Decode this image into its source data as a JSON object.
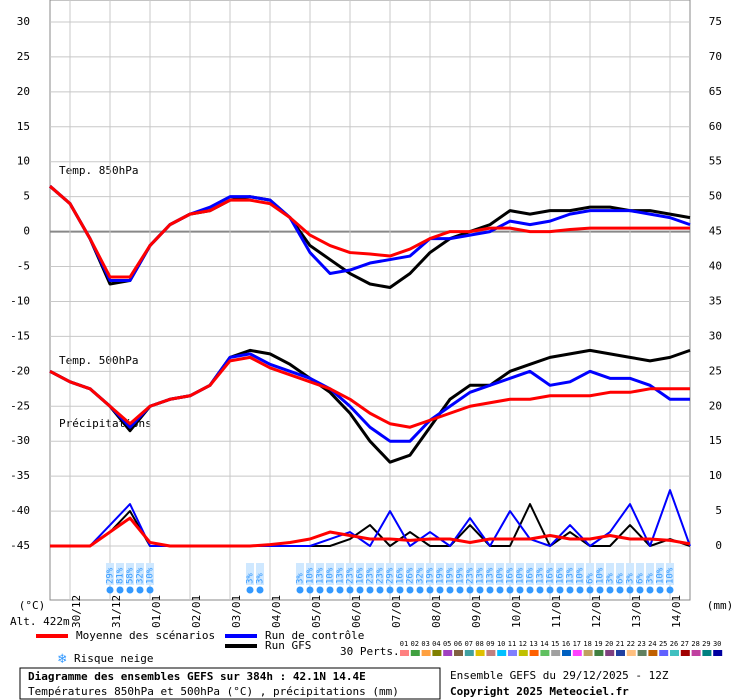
{
  "chart_data": {
    "type": "line",
    "x": [
      0,
      12,
      24,
      36,
      48,
      60,
      72,
      84,
      96,
      108,
      120,
      132,
      144,
      156,
      168,
      180,
      192,
      204,
      216,
      228,
      240,
      252,
      264,
      276,
      288,
      300,
      312,
      324,
      336,
      348,
      360,
      372,
      384
    ],
    "xlim": [
      0,
      384
    ],
    "xticks": [
      {
        "value": 12,
        "label": "30/12"
      },
      {
        "value": 36,
        "label": "31/12"
      },
      {
        "value": 60,
        "label": "01/01"
      },
      {
        "value": 84,
        "label": "02/01"
      },
      {
        "value": 108,
        "label": "03/01"
      },
      {
        "value": 132,
        "label": "04/01"
      },
      {
        "value": 156,
        "label": "05/01"
      },
      {
        "value": 180,
        "label": "06/01"
      },
      {
        "value": 204,
        "label": "07/01"
      },
      {
        "value": 228,
        "label": "08/01"
      },
      {
        "value": 252,
        "label": "09/01"
      },
      {
        "value": 276,
        "label": "10/01"
      },
      {
        "value": 300,
        "label": "11/01"
      },
      {
        "value": 324,
        "label": "12/01"
      },
      {
        "value": 348,
        "label": "13/01"
      },
      {
        "value": 372,
        "label": "14/01"
      }
    ],
    "ylim": [
      -45,
      30
    ],
    "yticks": [
      -45,
      -40,
      -35,
      -30,
      -25,
      -20,
      -15,
      -10,
      -5,
      0,
      5,
      10,
      15,
      20,
      25,
      30
    ],
    "y2lim": [
      0,
      75
    ],
    "y2ticks": [
      0,
      5,
      10,
      15,
      20,
      25,
      30,
      35,
      40,
      45,
      50,
      55,
      60,
      65,
      70,
      75
    ],
    "grid": true,
    "ylabel": "(°C)",
    "y2label": "(mm)",
    "altitude": "Alt. 422m",
    "field_labels": {
      "t850": "Temp. 850hPa",
      "t500": "Temp. 500hPa",
      "precip": "Précipitations"
    },
    "series": [
      {
        "name": "Moyenne des scénarios",
        "color": "#ff0000",
        "t850": [
          6.5,
          4,
          -1,
          -6.5,
          -6.5,
          -2,
          1,
          2.5,
          3,
          4.5,
          4.5,
          4,
          2,
          -0.5,
          -2,
          -3,
          -3.2,
          -3.5,
          -2.5,
          -1,
          0,
          0,
          0.5,
          0.5,
          0,
          0,
          0.3,
          0.5,
          0.5,
          0.5,
          0.5,
          0.5,
          0.5
        ],
        "t500": [
          -20,
          -21.5,
          -22.5,
          -25,
          -27.5,
          -25,
          -24,
          -23.5,
          -22,
          -18.5,
          -18,
          -19.5,
          -20.5,
          -21.5,
          -22.5,
          -24,
          -26,
          -27.5,
          -28,
          -27,
          -26,
          -25,
          -24.5,
          -24,
          -24,
          -23.5,
          -23.5,
          -23.5,
          -23,
          -23,
          -22.5,
          -22.5,
          -22.5
        ],
        "precip": [
          0,
          0,
          0,
          2,
          4,
          0.5,
          0,
          0,
          0,
          0,
          0,
          0.2,
          0.5,
          1,
          2,
          1.5,
          1,
          1,
          0.8,
          1,
          1,
          0.5,
          1,
          1,
          1,
          1.5,
          1,
          1,
          1.5,
          1,
          1,
          0.8,
          0.3
        ]
      },
      {
        "name": "Run de contrôle",
        "color": "#0000ff",
        "t850": [
          6.5,
          4,
          -1,
          -7,
          -7,
          -2,
          1,
          2.5,
          3.5,
          5,
          5,
          4.5,
          2,
          -3,
          -6,
          -5.5,
          -4.5,
          -4,
          -3.5,
          -1,
          -1,
          -0.5,
          0,
          1.5,
          1,
          1.5,
          2.5,
          3,
          3,
          3,
          2.5,
          2,
          1
        ],
        "t500": [
          -20,
          -21.5,
          -22.5,
          -25,
          -28,
          -25,
          -24,
          -23.5,
          -22,
          -18,
          -17.5,
          -19,
          -20,
          -21,
          -22.5,
          -25,
          -28,
          -30,
          -30,
          -27,
          -25,
          -23,
          -22,
          -21,
          -20,
          -22,
          -21.5,
          -20,
          -21,
          -21,
          -22,
          -24,
          -24
        ],
        "precip": [
          0,
          0,
          0,
          3,
          6,
          0,
          0,
          0,
          0,
          0,
          0,
          0,
          0,
          0,
          1,
          2,
          0,
          5,
          0,
          2,
          0,
          4,
          0,
          5,
          1,
          0,
          3,
          0,
          2,
          6,
          0,
          8,
          0
        ]
      },
      {
        "name": "Run GFS",
        "color": "#000000",
        "t850": [
          6.5,
          4,
          -1,
          -7.5,
          -7,
          -2,
          1,
          2.5,
          3,
          4.5,
          5,
          4.5,
          2,
          -2,
          -4,
          -6,
          -7.5,
          -8,
          -6,
          -3,
          -1,
          0,
          1,
          3,
          2.5,
          3,
          3,
          3.5,
          3.5,
          3,
          3,
          2.5,
          2
        ],
        "t500": [
          -20,
          -21.5,
          -22.5,
          -25,
          -28.5,
          -25,
          -24,
          -23.5,
          -22,
          -18,
          -17,
          -17.5,
          -19,
          -21,
          -23,
          -26,
          -30,
          -33,
          -32,
          -28,
          -24,
          -22,
          -22,
          -20,
          -19,
          -18,
          -17.5,
          -17,
          -17.5,
          -18,
          -18.5,
          -18,
          -17
        ],
        "precip": [
          0,
          0,
          0,
          2,
          5,
          0,
          0,
          0,
          0,
          0,
          0,
          0,
          0,
          0,
          0,
          1,
          3,
          0,
          2,
          0,
          0,
          3,
          0,
          0,
          6,
          0,
          2,
          0,
          0,
          3,
          0,
          1,
          0
        ]
      }
    ],
    "snow": {
      "name": "Risque neige",
      "color": "#3399ff",
      "x": [
        36,
        42,
        48,
        54,
        60,
        120,
        126,
        150,
        156,
        162,
        168,
        174,
        180,
        186,
        192,
        198,
        204,
        210,
        216,
        222,
        228,
        234,
        240,
        246,
        252,
        258,
        264,
        270,
        276,
        282,
        288,
        294,
        300,
        306,
        312,
        318,
        324,
        330,
        336,
        342,
        348,
        354,
        360,
        366,
        372
      ],
      "values": [
        29,
        81,
        58,
        32,
        10,
        3,
        3,
        3,
        10,
        13,
        10,
        13,
        23,
        16,
        23,
        23,
        29,
        16,
        26,
        32,
        19,
        19,
        19,
        19,
        23,
        13,
        13,
        10,
        16,
        10,
        16,
        13,
        16,
        16,
        13,
        10,
        6,
        10,
        3,
        6,
        3,
        6,
        3,
        10,
        10
      ],
      "value_labels": [
        "29%",
        "81%",
        "58%",
        "32%",
        "10%",
        "3%",
        "3%",
        "3%",
        "10%",
        "13%",
        "10%",
        "13%",
        "23%",
        "16%",
        "23%",
        "23%",
        "29%",
        "16%",
        "26%",
        "32%",
        "19%",
        "19%",
        "19%",
        "19%",
        "23%",
        "13%",
        "13%",
        "10%",
        "16%",
        "10%",
        "16%",
        "13%",
        "16%",
        "16%",
        "13%",
        "10%",
        "6%",
        "10%",
        "3%",
        "6%",
        "3%",
        "6%",
        "3%",
        "10%",
        "10%"
      ]
    },
    "perturbations": {
      "label": "30 Perts.",
      "names": [
        "01",
        "02",
        "03",
        "04",
        "05",
        "06",
        "07",
        "08",
        "09",
        "10",
        "11",
        "12",
        "13",
        "14",
        "15",
        "16",
        "17",
        "18",
        "19",
        "20",
        "21",
        "22",
        "23",
        "24",
        "25",
        "26",
        "27",
        "28",
        "29",
        "30"
      ],
      "colors": [
        "#ff8080",
        "#40a040",
        "#ffa040",
        "#808000",
        "#a040c0",
        "#806040",
        "#40a0a0",
        "#e0c000",
        "#c08080",
        "#00c0ff",
        "#8080ff",
        "#c0c000",
        "#ff6000",
        "#60c060",
        "#a0a0a0",
        "#0060c0",
        "#ff40ff",
        "#c0a060",
        "#408040",
        "#804080",
        "#2040a0",
        "#ffc080",
        "#608060",
        "#c06000",
        "#6060ff",
        "#40c0c0",
        "#a00000",
        "#c040a0",
        "#008080",
        "#0000a0"
      ]
    },
    "info": {
      "title": "Diagramme des ensembles GEFS sur 384h : 42.1N 14.4E",
      "subtitle": "Températures 850hPa et 500hPa (°C) , précipitations (mm)",
      "run": "Ensemble GEFS du 29/12/2025 - 12Z",
      "copyright": "Copyright 2025 Meteociel.fr"
    }
  }
}
